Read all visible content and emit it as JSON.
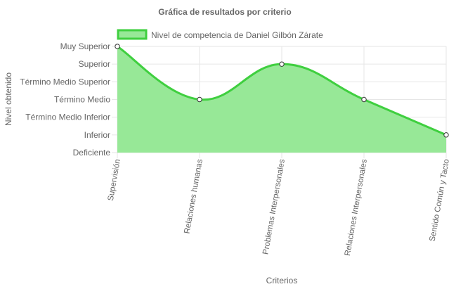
{
  "chart_data": {
    "type": "area",
    "title": "Gráfica de resultados por criterio",
    "xlabel": "Criterios",
    "ylabel": "Nivel obtenido",
    "categories": [
      "Supervisión",
      "Relaciones humanas",
      "Problemas Interpersonales",
      "Relaciones Interpersonales",
      "Sentido Común y Tacto"
    ],
    "y_levels": [
      "Deficiente",
      "Inferior",
      "Término Medio Inferior",
      "Término Medio",
      "Término Medio Superior",
      "Superior",
      "Muy Superior"
    ],
    "ylim": [
      0,
      6
    ],
    "series": [
      {
        "name": "Nivel de competencia de Daniel Gilbón Zárate",
        "values": [
          6,
          3,
          5,
          3,
          1
        ]
      }
    ],
    "legend_position": "top",
    "grid": true,
    "colors": {
      "line": "#3fcf3f",
      "fill": "#97e897",
      "grid": "#e6e6e6",
      "point_fill": "#ffffff",
      "point_stroke": "#333333"
    }
  }
}
